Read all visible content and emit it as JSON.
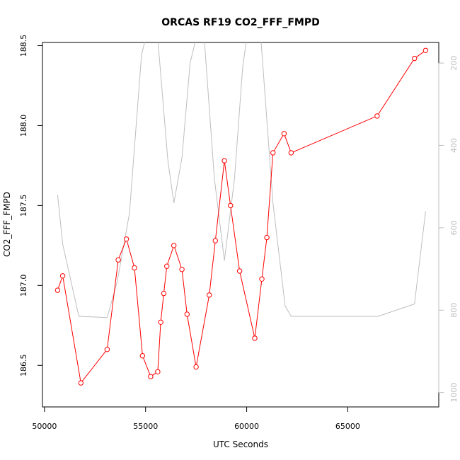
{
  "chart_data": {
    "type": "line",
    "title": "ORCAS RF19 CO2_FFF_FMPD",
    "xlabel": "UTC Seconds",
    "ylabel": "CO2_FFF_FMPD",
    "xlim": [
      49900,
      69500
    ],
    "ylim": [
      186.24,
      188.52
    ],
    "y2lim": [
      1035,
      150
    ],
    "xticks": [
      50000,
      55000,
      60000,
      65000
    ],
    "xtick_labels": [
      "50000",
      "55000",
      "60000",
      "65000"
    ],
    "yticks": [
      186.5,
      187.0,
      187.5,
      188.0,
      188.5
    ],
    "ytick_labels": [
      "186.5",
      "187.0",
      "187.5",
      "188.0",
      "188.5"
    ],
    "y2ticks": [
      200,
      400,
      600,
      800,
      1000
    ],
    "y2tick_labels": [
      "200",
      "400",
      "600",
      "800",
      "1000"
    ],
    "grid": false,
    "series": [
      {
        "color": "#ff0000",
        "marker": "open-circle",
        "axis": "left",
        "x": [
          50650,
          50900,
          51800,
          53100,
          53650,
          54050,
          54450,
          54850,
          55250,
          55600,
          55750,
          55900,
          56050,
          56400,
          56800,
          57050,
          57500,
          58150,
          58450,
          58900,
          59200,
          59650,
          60400,
          60750,
          61000,
          61300,
          61850,
          62200,
          66450,
          68300,
          68850
        ],
        "y": [
          186.97,
          187.06,
          186.39,
          186.6,
          187.16,
          187.29,
          187.11,
          186.56,
          186.43,
          186.46,
          186.77,
          186.95,
          187.12,
          187.25,
          187.1,
          186.82,
          186.49,
          186.94,
          187.28,
          187.78,
          187.5,
          187.09,
          186.67,
          187.04,
          187.3,
          187.83,
          187.95,
          187.83,
          188.06,
          188.42,
          188.47
        ]
      },
      {
        "color": "#bebebe",
        "marker": "none",
        "axis": "right",
        "x": [
          50650,
          50900,
          51700,
          53100,
          53600,
          54200,
          54800,
          55000,
          55600,
          56100,
          56400,
          56800,
          57200,
          57500,
          57900,
          58400,
          58900,
          59400,
          59800,
          60000,
          60700,
          61300,
          61900,
          62200,
          66500,
          68300,
          68850
        ],
        "y": [
          520,
          640,
          815,
          818,
          730,
          565,
          180,
          140,
          140,
          435,
          540,
          430,
          200,
          140,
          140,
          480,
          680,
          480,
          210,
          140,
          140,
          540,
          790,
          815,
          815,
          785,
          560
        ]
      }
    ]
  }
}
